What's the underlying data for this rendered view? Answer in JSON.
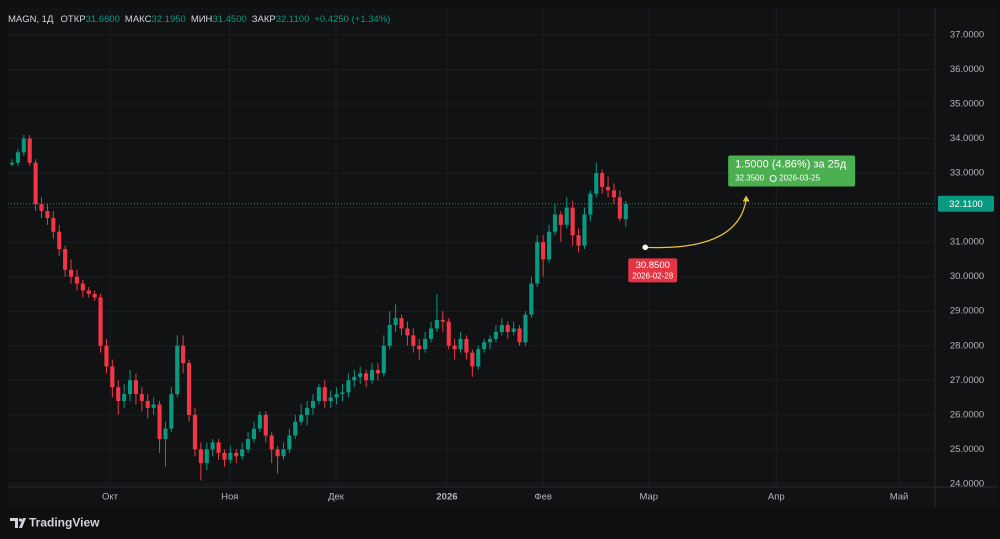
{
  "chart_data": {
    "type": "candlestick",
    "symbol": "MAGN, 1Д",
    "header": [
      {
        "label": "ОТКР",
        "value": {
          "value": 31.66,
          "label": "31.6600"
        }
      },
      {
        "label": "МАКС",
        "value": {
          "value": 32.195,
          "label": "32.1950"
        }
      },
      {
        "label": "МИН",
        "value": {
          "value": 31.45,
          "label": "31.4500"
        }
      },
      {
        "label": "ЗАКР",
        "value": {
          "value": 32.11,
          "label": "32.1100"
        }
      }
    ],
    "change": "+0.4250 (+1.34%)",
    "up_color": "#089981",
    "down_color": "#f23645",
    "grid": true,
    "ylim": [
      23.91,
      37.49
    ],
    "yticks": [
      {
        "value": 24,
        "label": "24.0000"
      },
      {
        "value": 25,
        "label": "25.0000"
      },
      {
        "value": 26,
        "label": "26.0000"
      },
      {
        "value": 27,
        "label": "27.0000"
      },
      {
        "value": 28,
        "label": "28.0000"
      },
      {
        "value": 29,
        "label": "29.0000"
      },
      {
        "value": 30,
        "label": "30.0000"
      },
      {
        "value": 31,
        "label": "31.0000"
      },
      {
        "value": 32,
        "label": "32.0000"
      },
      {
        "value": 33,
        "label": "33.0000"
      },
      {
        "value": 34,
        "label": "34.0000"
      },
      {
        "value": 35,
        "label": "35.0000"
      },
      {
        "value": 36,
        "label": "36.0000"
      },
      {
        "value": 37,
        "label": "37.0000"
      }
    ],
    "xlim": [
      -0.68,
      156.4
    ],
    "xticks": [
      {
        "value": 16.6,
        "label": "Окт"
      },
      {
        "value": 36.9,
        "label": "Ноя"
      },
      {
        "value": 54.9,
        "label": "Дек"
      },
      {
        "value": 73.7,
        "label": "2026"
      },
      {
        "value": 90.0,
        "label": "Фев"
      },
      {
        "value": 107.9,
        "label": "Мар"
      },
      {
        "value": 129.5,
        "label": "Апр"
      },
      {
        "value": 150.3,
        "label": "Май"
      }
    ],
    "ohlc": [
      [
        33.25,
        33.4,
        33.2,
        33.3
      ],
      [
        33.3,
        33.7,
        33.2,
        33.6
      ],
      [
        33.6,
        34.1,
        33.5,
        34.0
      ],
      [
        34.0,
        34.1,
        33.2,
        33.3
      ],
      [
        33.3,
        33.4,
        31.9,
        32.1
      ],
      [
        32.1,
        32.3,
        31.7,
        31.9
      ],
      [
        31.9,
        32.1,
        31.5,
        31.7
      ],
      [
        31.7,
        31.9,
        31.1,
        31.3
      ],
      [
        31.3,
        31.5,
        30.6,
        30.8
      ],
      [
        30.8,
        30.9,
        30.0,
        30.2
      ],
      [
        30.2,
        30.5,
        29.8,
        30.0
      ],
      [
        30.0,
        30.2,
        29.6,
        29.8
      ],
      [
        29.8,
        29.9,
        29.4,
        29.6
      ],
      [
        29.6,
        29.7,
        29.4,
        29.5
      ],
      [
        29.5,
        29.6,
        29.3,
        29.4
      ],
      [
        29.4,
        29.5,
        27.8,
        28.0
      ],
      [
        28.0,
        28.2,
        27.2,
        27.4
      ],
      [
        27.4,
        27.6,
        26.5,
        26.8
      ],
      [
        26.8,
        27.0,
        26.0,
        26.4
      ],
      [
        26.4,
        26.9,
        26.2,
        26.6
      ],
      [
        26.6,
        27.3,
        26.4,
        27.0
      ],
      [
        27.0,
        27.2,
        26.3,
        26.6
      ],
      [
        26.6,
        26.8,
        26.1,
        26.4
      ],
      [
        26.4,
        26.6,
        25.9,
        26.2
      ],
      [
        26.2,
        26.5,
        26.0,
        26.3
      ],
      [
        26.3,
        26.4,
        24.9,
        25.3
      ],
      [
        25.3,
        25.8,
        24.5,
        25.6
      ],
      [
        25.6,
        26.8,
        25.5,
        26.6
      ],
      [
        26.6,
        28.3,
        26.5,
        28.0
      ],
      [
        28.0,
        28.3,
        27.2,
        27.5
      ],
      [
        27.5,
        27.6,
        25.8,
        26.0
      ],
      [
        26.0,
        26.2,
        24.8,
        25.0
      ],
      [
        25.0,
        25.2,
        24.1,
        24.6
      ],
      [
        24.6,
        25.2,
        24.4,
        25.0
      ],
      [
        25.0,
        25.3,
        24.8,
        25.2
      ],
      [
        25.2,
        25.3,
        24.7,
        24.9
      ],
      [
        24.9,
        25.0,
        24.5,
        24.7
      ],
      [
        24.7,
        25.1,
        24.6,
        24.9
      ],
      [
        24.9,
        25.0,
        24.6,
        24.8
      ],
      [
        24.8,
        25.2,
        24.7,
        25.0
      ],
      [
        25.0,
        25.5,
        24.9,
        25.3
      ],
      [
        25.3,
        25.8,
        25.2,
        25.6
      ],
      [
        25.6,
        26.1,
        25.5,
        26.0
      ],
      [
        26.0,
        26.1,
        25.2,
        25.4
      ],
      [
        25.4,
        25.5,
        24.6,
        25.0
      ],
      [
        25.0,
        25.1,
        24.3,
        24.8
      ],
      [
        24.8,
        25.2,
        24.7,
        25.0
      ],
      [
        25.0,
        25.6,
        24.9,
        25.4
      ],
      [
        25.4,
        26.0,
        25.3,
        25.8
      ],
      [
        25.8,
        26.3,
        25.7,
        26.0
      ],
      [
        26.0,
        26.4,
        25.7,
        26.2
      ],
      [
        26.2,
        26.6,
        26.0,
        26.4
      ],
      [
        26.4,
        26.9,
        26.3,
        26.8
      ],
      [
        26.8,
        27.0,
        26.2,
        26.4
      ],
      [
        26.4,
        26.7,
        26.2,
        26.5
      ],
      [
        26.5,
        26.8,
        26.3,
        26.6
      ],
      [
        26.6,
        26.9,
        26.4,
        26.65
      ],
      [
        26.65,
        27.2,
        26.5,
        27.0
      ],
      [
        27.0,
        27.3,
        26.8,
        27.1
      ],
      [
        27.1,
        27.4,
        26.9,
        27.2
      ],
      [
        27.2,
        27.3,
        26.8,
        27.0
      ],
      [
        27.0,
        27.5,
        26.9,
        27.3
      ],
      [
        27.3,
        27.5,
        27.0,
        27.2
      ],
      [
        27.2,
        28.3,
        27.1,
        28.0
      ],
      [
        28.0,
        29.0,
        27.9,
        28.6
      ],
      [
        28.6,
        29.2,
        28.4,
        28.8
      ],
      [
        28.8,
        28.9,
        28.3,
        28.5
      ],
      [
        28.5,
        28.7,
        28.0,
        28.3
      ],
      [
        28.3,
        28.5,
        27.8,
        28.0
      ],
      [
        28.0,
        28.2,
        27.6,
        27.9
      ],
      [
        27.9,
        28.4,
        27.8,
        28.2
      ],
      [
        28.2,
        28.7,
        28.1,
        28.5
      ],
      [
        28.5,
        29.5,
        28.4,
        28.75
      ],
      [
        28.75,
        29.0,
        28.4,
        28.7
      ],
      [
        28.7,
        28.8,
        27.9,
        28.0
      ],
      [
        28.0,
        28.2,
        27.6,
        27.9
      ],
      [
        27.9,
        28.4,
        27.8,
        28.2
      ],
      [
        28.2,
        28.3,
        27.6,
        27.8
      ],
      [
        27.8,
        27.9,
        27.1,
        27.4
      ],
      [
        27.4,
        28.0,
        27.3,
        27.9
      ],
      [
        27.9,
        28.2,
        27.8,
        28.1
      ],
      [
        28.1,
        28.3,
        27.9,
        28.2
      ],
      [
        28.2,
        28.6,
        28.1,
        28.4
      ],
      [
        28.4,
        28.8,
        28.3,
        28.6
      ],
      [
        28.6,
        28.7,
        28.2,
        28.4
      ],
      [
        28.4,
        28.7,
        28.3,
        28.5
      ],
      [
        28.5,
        28.6,
        28.0,
        28.1
      ],
      [
        28.1,
        29.0,
        28.0,
        28.9
      ],
      [
        28.9,
        30.0,
        28.8,
        29.8
      ],
      [
        29.8,
        31.2,
        29.7,
        31.0
      ],
      [
        31.0,
        31.2,
        30.0,
        30.5
      ],
      [
        30.5,
        31.5,
        30.4,
        31.3
      ],
      [
        31.3,
        32.1,
        31.2,
        31.8
      ],
      [
        31.8,
        31.9,
        31.0,
        31.5
      ],
      [
        31.5,
        32.3,
        31.4,
        32.0
      ],
      [
        32.0,
        32.2,
        30.9,
        31.2
      ],
      [
        31.2,
        31.4,
        30.7,
        30.9
      ],
      [
        30.9,
        32.0,
        30.8,
        31.8
      ],
      [
        31.8,
        32.5,
        31.6,
        32.4
      ],
      [
        32.4,
        33.3,
        32.3,
        33.0
      ],
      [
        33.0,
        33.1,
        32.4,
        32.6
      ],
      [
        32.6,
        32.9,
        32.3,
        32.5
      ],
      [
        32.5,
        32.7,
        32.1,
        32.3
      ],
      [
        32.3,
        32.5,
        31.6,
        31.685
      ],
      [
        31.66,
        32.195,
        31.45,
        32.11
      ]
    ],
    "last_price": {
      "value": 32.11,
      "label": "32.1100"
    },
    "projection": {
      "start": {
        "x": 107.3,
        "price": {
          "value": 30.85,
          "label": "30.8500"
        },
        "date": "2026-02-28"
      },
      "end": {
        "x": 124.4,
        "price": {
          "value": 32.35,
          "label": "32.3500"
        },
        "date": "2026-03-25"
      },
      "change_label": "1.5000 (4.86%) за 25д"
    },
    "brand": "TradingView"
  }
}
